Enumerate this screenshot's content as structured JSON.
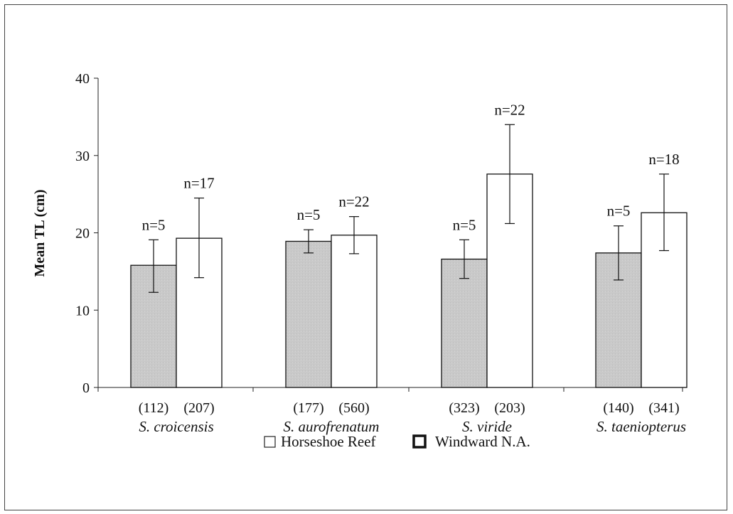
{
  "chart_data": {
    "type": "bar",
    "ylabel": "Mean TL (cm)",
    "xlabel": "",
    "ylim": [
      0,
      40
    ],
    "yticks": [
      0,
      10,
      20,
      30,
      40
    ],
    "grid": false,
    "legend_placement": "bottom",
    "categories": [
      "S. croicensis",
      "S. aurofrenatum",
      "S. viride",
      "S. taeniopterus"
    ],
    "group_counts": [
      [
        "(112)",
        "(207)"
      ],
      [
        "(177)",
        "(560)"
      ],
      [
        "(323)",
        "(203)"
      ],
      [
        "(140)",
        "(341)"
      ]
    ],
    "series": [
      {
        "name": "Horseshoe Reef",
        "color": "#c9c9c9",
        "values": [
          15.8,
          18.9,
          16.6,
          17.4
        ],
        "error": [
          [
            12.3,
            19.1
          ],
          [
            17.4,
            20.4
          ],
          [
            14.1,
            19.1
          ],
          [
            13.9,
            20.9
          ]
        ],
        "labels": [
          "n=5",
          "n=5",
          "n=5",
          "n=5"
        ]
      },
      {
        "name": "Windward N.A.",
        "color": "#ffffff",
        "values": [
          19.3,
          19.7,
          27.6,
          22.6
        ],
        "error": [
          [
            14.2,
            24.5
          ],
          [
            17.3,
            22.1
          ],
          [
            21.2,
            34.0
          ],
          [
            17.7,
            27.6
          ]
        ],
        "labels": [
          "n=17",
          "n=22",
          "n=22",
          "n=18"
        ]
      }
    ]
  }
}
